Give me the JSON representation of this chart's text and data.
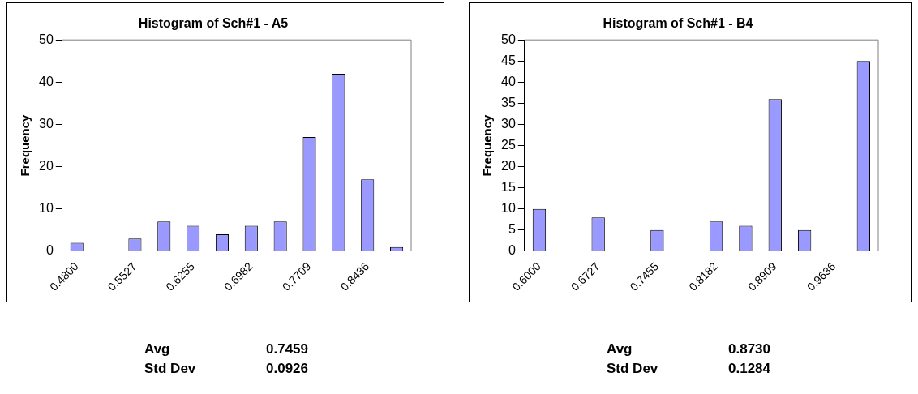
{
  "chart_data": [
    {
      "type": "bar",
      "title": "Histogram of Sch#1 - A5",
      "ylabel": "Frequency",
      "categories": [
        "0.4800",
        null,
        "0.5527",
        null,
        "0.6255",
        null,
        "0.6982",
        null,
        "0.7709",
        null,
        "0.8436",
        null
      ],
      "values": [
        2,
        0,
        3,
        7,
        6,
        4,
        6,
        7,
        27,
        42,
        17,
        1
      ],
      "color": "#9999ff",
      "ylim": [
        0,
        50
      ],
      "yticks": [
        0,
        10,
        20,
        30,
        40,
        50
      ],
      "grid": false,
      "legend": false,
      "annotations": [
        "Avg",
        "0.7459",
        "Std Dev",
        "0.0926"
      ]
    },
    {
      "type": "bar",
      "title": "Histogram of Sch#1 - B4",
      "ylabel": "Frequency",
      "categories": [
        "0.6000",
        null,
        "0.6727",
        null,
        "0.7455",
        null,
        "0.8182",
        null,
        "0.8909",
        null,
        "0.9636",
        null
      ],
      "values": [
        10,
        0,
        8,
        0,
        5,
        0,
        7,
        6,
        36,
        5,
        0,
        45
      ],
      "color": "#9999ff",
      "ylim": [
        0,
        50
      ],
      "yticks": [
        0,
        5,
        10,
        15,
        20,
        25,
        30,
        35,
        40,
        45,
        50
      ],
      "grid": false,
      "legend": false,
      "annotations": [
        "Avg",
        "0.8730",
        "Std Dev",
        "0.1284"
      ]
    }
  ]
}
